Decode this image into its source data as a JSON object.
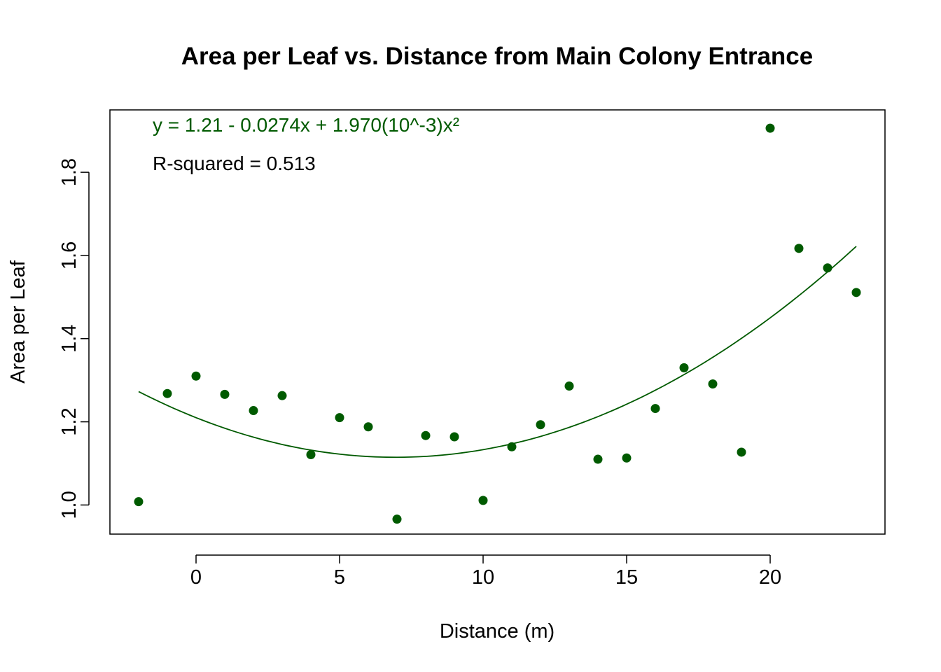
{
  "chart_data": {
    "type": "scatter",
    "title": "Area per Leaf vs. Distance from Main Colony Entrance",
    "xlabel": "Distance (m)",
    "ylabel": "Area per Leaf",
    "xlim": [
      -3,
      24
    ],
    "ylim": [
      0.93,
      1.95
    ],
    "x_ticks": [
      0,
      5,
      10,
      15,
      20
    ],
    "y_ticks": [
      1.0,
      1.2,
      1.4,
      1.6,
      1.8
    ],
    "x_tick_labels": [
      "0",
      "5",
      "10",
      "15",
      "20"
    ],
    "y_tick_labels": [
      "1.0",
      "1.2",
      "1.4",
      "1.6",
      "1.8"
    ],
    "grid": false,
    "point_color": "#005a00",
    "fit_color": "#005a00",
    "points": [
      {
        "x": -2,
        "y": 1.008
      },
      {
        "x": -1,
        "y": 1.268
      },
      {
        "x": 0,
        "y": 1.31
      },
      {
        "x": 1,
        "y": 1.266
      },
      {
        "x": 2,
        "y": 1.227
      },
      {
        "x": 3,
        "y": 1.263
      },
      {
        "x": 4,
        "y": 1.121
      },
      {
        "x": 5,
        "y": 1.21
      },
      {
        "x": 6,
        "y": 1.188
      },
      {
        "x": 7,
        "y": 0.966
      },
      {
        "x": 8,
        "y": 1.167
      },
      {
        "x": 9,
        "y": 1.164
      },
      {
        "x": 10,
        "y": 1.011
      },
      {
        "x": 11,
        "y": 1.14
      },
      {
        "x": 12,
        "y": 1.193
      },
      {
        "x": 13,
        "y": 1.286
      },
      {
        "x": 14,
        "y": 1.11
      },
      {
        "x": 15,
        "y": 1.113
      },
      {
        "x": 16,
        "y": 1.232
      },
      {
        "x": 17,
        "y": 1.33
      },
      {
        "x": 18,
        "y": 1.291
      },
      {
        "x": 19,
        "y": 1.127
      },
      {
        "x": 20,
        "y": 1.906
      },
      {
        "x": 21,
        "y": 1.617
      },
      {
        "x": 22,
        "y": 1.57
      },
      {
        "x": 23,
        "y": 1.511
      }
    ],
    "fit": {
      "coefficients": [
        1.21,
        -0.0274,
        0.00197
      ],
      "x_range": [
        -2,
        23
      ]
    },
    "annotations": {
      "equation": "y = 1.21 - 0.0274x + 1.970(10^-3)x²",
      "equation_color": "#005a00",
      "r_squared": "R-squared = 0.513",
      "r_squared_color": "#000000"
    }
  }
}
